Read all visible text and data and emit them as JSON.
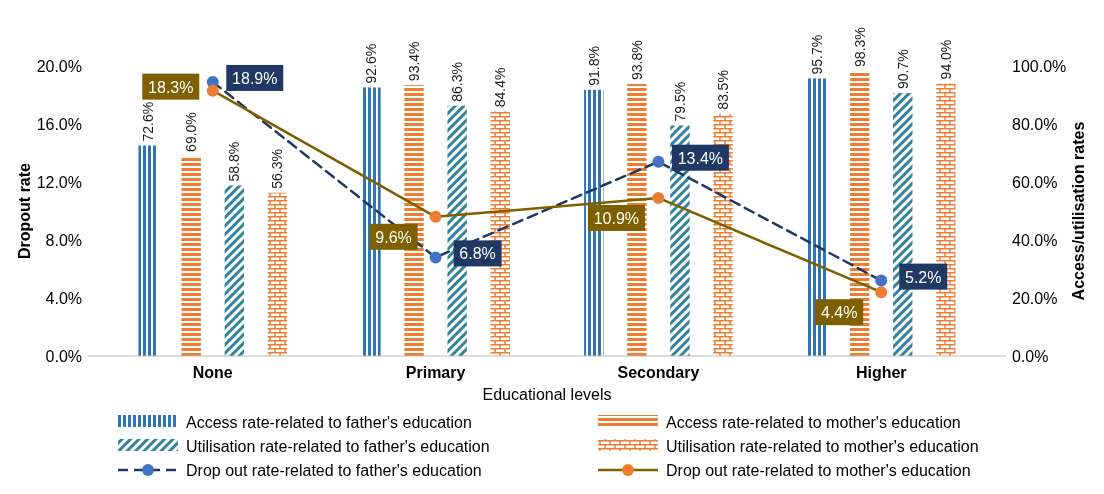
{
  "chart_data": {
    "type": "bar",
    "xlabel": "Educational levels",
    "ylabel": "Dropout rate",
    "y2label": "Access/utilisation rates",
    "categories": [
      "None",
      "Primary",
      "Secondary",
      "Higher"
    ],
    "ylim": [
      0,
      20
    ],
    "yticks": [
      {
        "value": 0,
        "label": "0.0%"
      },
      {
        "value": 4,
        "label": "4.0%"
      },
      {
        "value": 8,
        "label": "8.0%"
      },
      {
        "value": 12,
        "label": "12.0%"
      },
      {
        "value": 16,
        "label": "16.0%"
      },
      {
        "value": 20,
        "label": "20.0%"
      }
    ],
    "y2lim": [
      0,
      100
    ],
    "y2ticks": [
      {
        "value": 0,
        "label": "0.0%"
      },
      {
        "value": 20,
        "label": "20.0%"
      },
      {
        "value": 40,
        "label": "40.0%"
      },
      {
        "value": 60,
        "label": "60.0%"
      },
      {
        "value": 80,
        "label": "80.0%"
      },
      {
        "value": 100,
        "label": "100.0%"
      }
    ],
    "legend": "bottom",
    "marker": "circle",
    "series": [
      {
        "name": "Access rate-related to father's education",
        "axis": "y2",
        "color": "#2e75b6",
        "values": [
          72.6,
          92.6,
          91.8,
          95.7
        ],
        "value_labels": [
          "72.6%",
          "92.6%",
          "91.8%",
          "95.7%"
        ]
      },
      {
        "name": "Access rate-related to mother's education",
        "axis": "y2",
        "color": "#ed7d31",
        "values": [
          69.0,
          93.4,
          93.8,
          98.3
        ],
        "value_labels": [
          "69.0%",
          "93.4%",
          "93.8%",
          "98.3%"
        ]
      },
      {
        "name": "Utilisation rate-related to father's education",
        "axis": "y2",
        "color": "#31849b",
        "values": [
          58.8,
          86.3,
          79.5,
          90.7
        ],
        "value_labels": [
          "58.8%",
          "86.3%",
          "79.5%",
          "90.7%"
        ]
      },
      {
        "name": "Utilisation rate-related to mother's education",
        "axis": "y2",
        "color": "#ed7d31",
        "values": [
          56.3,
          84.4,
          83.5,
          94.0
        ],
        "value_labels": [
          "56.3%",
          "84.4%",
          "83.5%",
          "94.0%"
        ]
      },
      {
        "name": "Drop out rate-related to father's education",
        "type": "line",
        "axis": "y",
        "line_style": "dashed",
        "color": "#1f3864",
        "colors": [
          "#4472c4",
          "#4472c4",
          "#4472c4",
          "#4472c4"
        ],
        "values": [
          18.9,
          6.8,
          13.4,
          5.2
        ],
        "value_labels": [
          "18.9%",
          "6.8%",
          "13.4%",
          "5.2%"
        ]
      },
      {
        "name": "Drop out rate-related to mother's education",
        "type": "line",
        "axis": "y",
        "line_style": "solid",
        "color": "#7f6000",
        "colors": [
          "#ed7d31",
          "#ed7d31",
          "#ed7d31",
          "#ed7d31"
        ],
        "values": [
          18.3,
          9.6,
          10.9,
          4.4
        ],
        "value_labels": [
          "18.3%",
          "9.6%",
          "10.9%",
          "4.4%"
        ]
      }
    ]
  }
}
